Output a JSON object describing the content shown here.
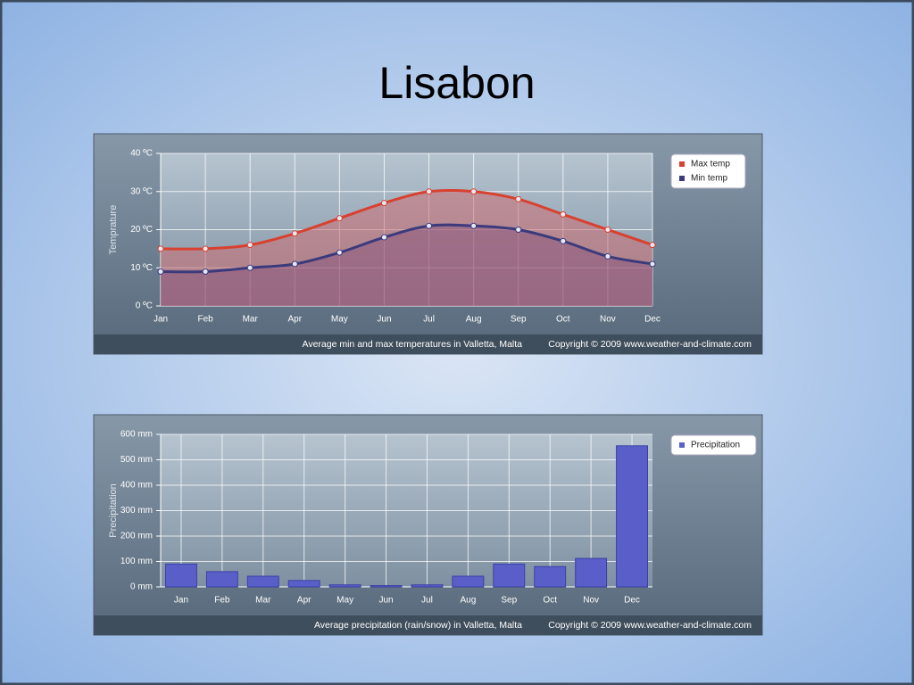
{
  "title": "Lisabon",
  "chart_data": [
    {
      "type": "area",
      "ylabel": "Temprature",
      "caption": "Average min and max temperatures in Valletta, Malta",
      "copyright": "Copyright © 2009 www.weather-and-climate.com",
      "categories": [
        "Jan",
        "Feb",
        "Mar",
        "Apr",
        "May",
        "Jun",
        "Jul",
        "Aug",
        "Sep",
        "Oct",
        "Nov",
        "Dec"
      ],
      "series": [
        {
          "name": "Max temp",
          "color": "#d8412f",
          "values": [
            15,
            15,
            16,
            19,
            23,
            27,
            30,
            30,
            28,
            24,
            20,
            16
          ]
        },
        {
          "name": "Min temp",
          "color": "#3b3a7c",
          "values": [
            9,
            9,
            10,
            11,
            14,
            18,
            21,
            21,
            20,
            17,
            13,
            11
          ]
        }
      ],
      "ylim": [
        0,
        40
      ],
      "yticks": [
        {
          "value": 0,
          "label": "0 ºC"
        },
        {
          "value": 10,
          "label": "10 ºC"
        },
        {
          "value": 20,
          "label": "20 ºC"
        },
        {
          "value": 30,
          "label": "30 ºC"
        },
        {
          "value": 40,
          "label": "40 ºC"
        }
      ],
      "grid": true,
      "legend": "top-right"
    },
    {
      "type": "bar",
      "ylabel": "Precipitation",
      "caption": "Average precipitation (rain/snow) in Valletta, Malta",
      "copyright": "Copyright © 2009 www.weather-and-climate.com",
      "categories": [
        "Jan",
        "Feb",
        "Mar",
        "Apr",
        "May",
        "Jun",
        "Jul",
        "Aug",
        "Sep",
        "Oct",
        "Nov",
        "Dec"
      ],
      "series": [
        {
          "name": "Precipitation",
          "color": "#5a5ec8",
          "values": [
            90,
            60,
            42,
            25,
            8,
            5,
            8,
            42,
            90,
            80,
            112,
            555
          ]
        }
      ],
      "ylim": [
        0,
        600
      ],
      "yticks": [
        {
          "value": 0,
          "label": "0 mm"
        },
        {
          "value": 100,
          "label": "100 mm"
        },
        {
          "value": 200,
          "label": "200 mm"
        },
        {
          "value": 300,
          "label": "300 mm"
        },
        {
          "value": 400,
          "label": "400 mm"
        },
        {
          "value": 500,
          "label": "500 mm"
        },
        {
          "value": 600,
          "label": "600 mm"
        }
      ],
      "grid": true,
      "legend": "top-right"
    }
  ]
}
